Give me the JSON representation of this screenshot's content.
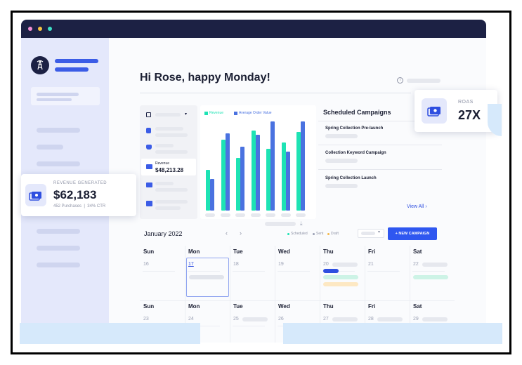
{
  "greeting": "Hi Rose, happy Monday!",
  "roas": {
    "label": "ROAS",
    "value": "27X"
  },
  "revenue_card": {
    "label": "REVENUE GENERATED",
    "value": "$62,183",
    "sub": "452 Purchases  |  34% CTR"
  },
  "left_panel": {
    "revenue_label": "Revenue",
    "revenue_value": "$48,213.28"
  },
  "chart_data": {
    "type": "bar",
    "categories": [
      "1",
      "2",
      "3",
      "4",
      "5",
      "6",
      "7"
    ],
    "series": [
      {
        "name": "Revenue",
        "values": [
          45,
          78,
          58,
          88,
          68,
          75,
          86
        ]
      },
      {
        "name": "Average Order Value",
        "values": [
          35,
          85,
          70,
          83,
          98,
          65,
          98
        ]
      }
    ],
    "ylim": [
      0,
      100
    ],
    "colors": [
      "#1de3b4",
      "#4a72e0"
    ]
  },
  "scheduled": {
    "title": "Scheduled Campaigns",
    "items": [
      "Spring Collection Pre-launch",
      "Collection Keyword Campaign",
      "Spring Collection Launch"
    ],
    "view_all": "View All"
  },
  "calendar": {
    "month": "January 2022",
    "prev": "‹",
    "next": "›",
    "legend": [
      "Scheduled",
      "Sent",
      "Draft"
    ],
    "legend_colors": [
      "#1de3b4",
      "#9aa0b4",
      "#f5b84a"
    ],
    "new_campaign": "+ NEW CAMPAIGN",
    "days": [
      "Sun",
      "Mon",
      "Tue",
      "Wed",
      "Thu",
      "Fri",
      "Sat"
    ],
    "week1": [
      "16",
      "17",
      "18",
      "19",
      "20",
      "21",
      "22"
    ],
    "week2": [
      "23",
      "24",
      "25",
      "26",
      "27",
      "28",
      "29"
    ]
  }
}
